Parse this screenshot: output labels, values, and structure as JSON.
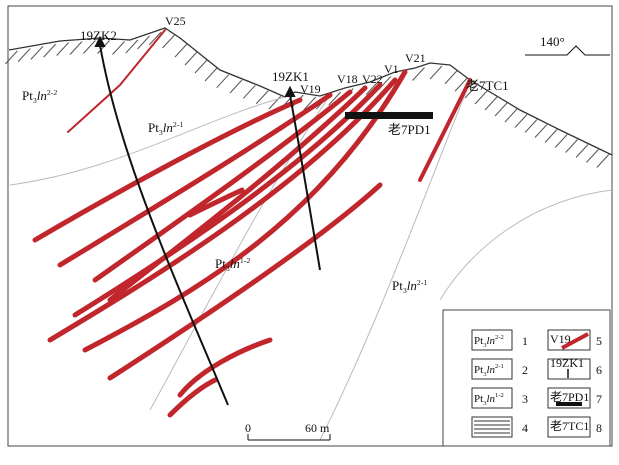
{
  "map_labels": {
    "drill_a": "19ZK2",
    "vein_v25": "V25",
    "orientation": "140°",
    "drill_b": "19ZK1",
    "vein_v19": "V19",
    "vein_v18": "V18",
    "vein_v22": "V22",
    "vein_v1": "V1",
    "vein_v21": "V21",
    "trench": "老7TC1",
    "adit": "老7PD1"
  },
  "strata": [
    {
      "base": "Pt",
      "sub": "3",
      "name": "ln",
      "sup": "2-2"
    },
    {
      "base": "Pt",
      "sub": "3",
      "name": "ln",
      "sup": "2-1"
    },
    {
      "base": "Pt",
      "sub": "3",
      "name": "ln",
      "sup": "1-2"
    },
    {
      "base": "Pt",
      "sub": "3",
      "name": "ln",
      "sup": "2-1"
    }
  ],
  "scale": {
    "start": "0",
    "end": "60 m"
  },
  "legend": [
    {
      "symbol": {
        "base": "Pt",
        "sub": "3",
        "name": "ln",
        "sup": "2-2"
      },
      "number": "1"
    },
    {
      "symbol": {
        "base": "Pt",
        "sub": "3",
        "name": "ln",
        "sup": "2-1"
      },
      "number": "2"
    },
    {
      "symbol": {
        "base": "Pt",
        "sub": "3",
        "name": "ln",
        "sup": "1-2"
      },
      "number": "3"
    },
    {
      "number": "4"
    },
    {
      "symbol": "V19",
      "number": "5"
    },
    {
      "symbol": "19ZK1",
      "number": "6"
    },
    {
      "symbol": "老7PD1",
      "number": "7"
    },
    {
      "symbol": "老7TC1",
      "number": "8"
    }
  ]
}
